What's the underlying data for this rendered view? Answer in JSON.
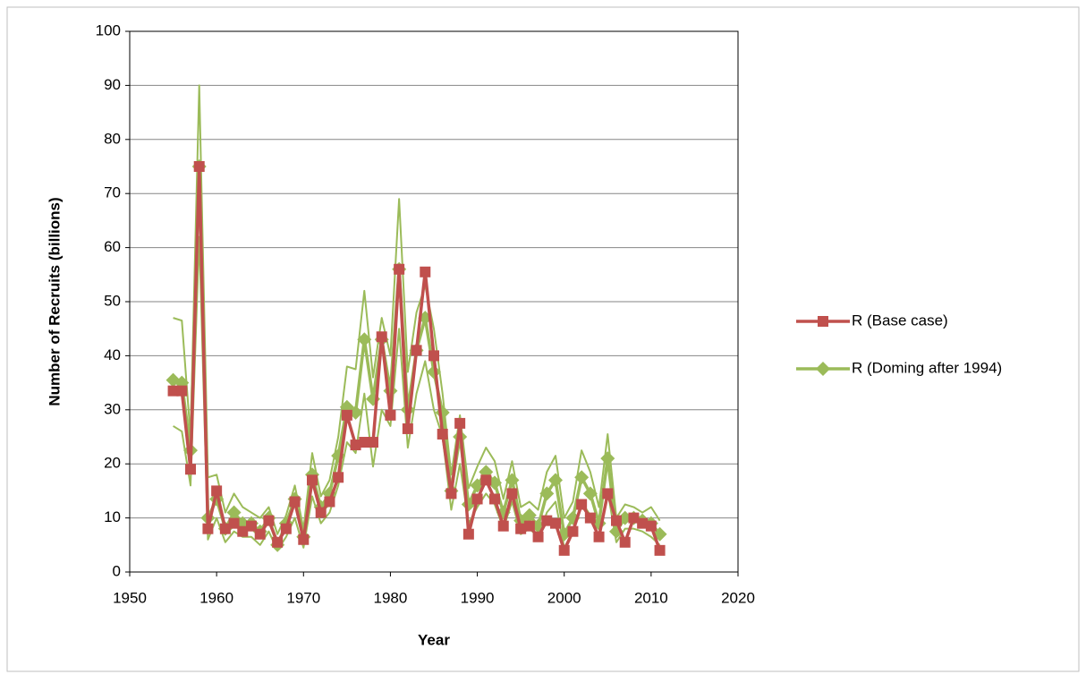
{
  "chart_data": {
    "type": "line",
    "x_label": "Year",
    "y_label": "Number of Recruits (billions)",
    "x": [
      1955,
      1956,
      1957,
      1958,
      1959,
      1960,
      1961,
      1962,
      1963,
      1964,
      1965,
      1966,
      1967,
      1968,
      1969,
      1970,
      1971,
      1972,
      1973,
      1974,
      1975,
      1976,
      1977,
      1978,
      1979,
      1980,
      1981,
      1982,
      1983,
      1984,
      1985,
      1986,
      1987,
      1988,
      1989,
      1990,
      1991,
      1992,
      1993,
      1994,
      1995,
      1996,
      1997,
      1998,
      1999,
      2000,
      2001,
      2002,
      2003,
      2004,
      2005,
      2006,
      2007,
      2008,
      2009,
      2010,
      2011
    ],
    "series": [
      {
        "name": "R (Base case)",
        "color": "#c0504d",
        "marker": "square",
        "line_width": 3.5,
        "values": [
          33.5,
          33.5,
          19,
          75,
          8,
          15,
          8,
          9,
          7.5,
          8.5,
          7,
          9.5,
          5.5,
          8,
          13,
          6,
          17,
          11,
          13,
          17.5,
          29,
          23.5,
          24,
          24,
          43.5,
          29,
          56,
          26.5,
          41,
          55.5,
          40,
          25.5,
          14.5,
          27.5,
          7,
          13.5,
          17,
          13.5,
          8.5,
          14.5,
          8,
          8.5,
          6.5,
          9.5,
          9,
          4,
          7.5,
          12.5,
          10,
          6.5,
          14.5,
          9.5,
          5.5,
          10,
          9,
          8.5,
          4
        ]
      },
      {
        "name": "R (Doming after 1994)",
        "color": "#9bbb59",
        "marker": "diamond",
        "line_width": 3.5,
        "values": [
          35.5,
          35,
          22.5,
          75,
          10,
          13.5,
          8,
          11,
          9,
          9,
          7.5,
          10,
          5,
          9,
          13.5,
          6.5,
          18,
          12,
          14.5,
          21.5,
          30.5,
          29.5,
          43,
          32,
          43,
          33.5,
          56,
          30,
          41,
          47,
          37,
          29.5,
          15,
          25,
          12.5,
          16,
          18.5,
          16.5,
          11,
          17,
          9.5,
          10.5,
          8.5,
          14.5,
          17,
          7,
          10,
          17.5,
          14.5,
          9,
          21,
          7.5,
          10,
          10,
          9.5,
          9,
          7
        ]
      },
      {
        "color": "#9bbb59",
        "marker": "none",
        "line_width": 2,
        "values": [
          47,
          46.5,
          25,
          90,
          17.5,
          18,
          11,
          14.5,
          12,
          11,
          10,
          12,
          7,
          10.5,
          16,
          8,
          22,
          14,
          17,
          25,
          38,
          37.5,
          52,
          36,
          47,
          40,
          69,
          37,
          48,
          53,
          45,
          33,
          18,
          29,
          15.5,
          19.5,
          23,
          20.5,
          13.5,
          20.5,
          12,
          13,
          11.5,
          18.5,
          21.5,
          10,
          13,
          22.5,
          18.5,
          12,
          25.5,
          10,
          12.5,
          12,
          11,
          12,
          9.5
        ]
      },
      {
        "color": "#9bbb59",
        "marker": "none",
        "line_width": 2,
        "values": [
          27,
          26,
          16,
          62,
          6,
          10,
          5.5,
          7.5,
          6.5,
          6.5,
          5,
          7.5,
          4,
          6.5,
          10,
          4.5,
          14,
          9,
          11,
          16,
          24,
          22,
          33,
          19.5,
          30,
          27,
          45,
          23,
          33,
          39,
          30,
          25,
          11.5,
          20,
          9,
          12,
          14.5,
          12.5,
          8,
          13,
          7,
          8,
          6.5,
          11,
          13,
          4.5,
          7.5,
          13,
          10.5,
          6.5,
          15,
          5.5,
          8,
          8,
          7.5,
          6.5,
          5
        ]
      }
    ],
    "xlim": [
      1950,
      2020
    ],
    "xticks": [
      1950,
      1960,
      1970,
      1980,
      1990,
      2000,
      2010,
      2020
    ],
    "ylim": [
      0,
      100
    ],
    "yticks": [
      0,
      10,
      20,
      30,
      40,
      50,
      60,
      70,
      80,
      90,
      100
    ],
    "grid": true,
    "legend": "right"
  }
}
